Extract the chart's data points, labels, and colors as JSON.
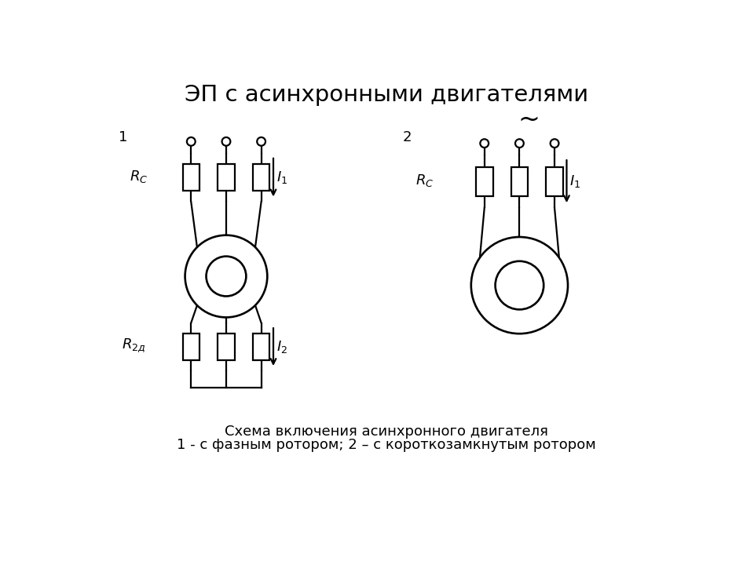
{
  "title": "ЭП с асинхронными двигателями",
  "subtitle1": "Схема включения асинхронного двигателя",
  "subtitle2": "1 - с фазным ротором; 2 – с короткозамкнутым ротором",
  "bg_color": "#ffffff",
  "line_color": "#000000"
}
